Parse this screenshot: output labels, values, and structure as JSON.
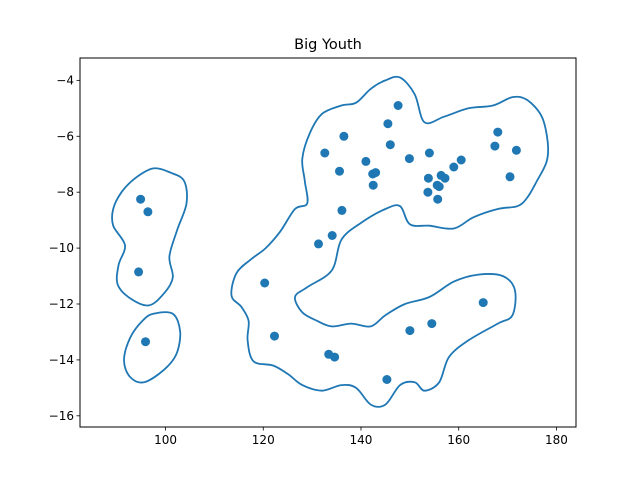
{
  "chart_data": {
    "type": "scatter",
    "title": "Big Youth",
    "xlabel": "",
    "ylabel": "",
    "xlim": [
      82.5,
      184
    ],
    "ylim": [
      -16.4,
      -3.2
    ],
    "xticks": [
      100,
      120,
      140,
      160,
      180
    ],
    "yticks": [
      -16,
      -14,
      -12,
      -10,
      -8,
      -6,
      -4
    ],
    "xtick_labels": [
      "100",
      "120",
      "140",
      "160",
      "180"
    ],
    "ytick_labels": [
      "−16",
      "−14",
      "−12",
      "−10",
      "−8",
      "−6",
      "−4"
    ],
    "grid": false,
    "point_color": "#1f77b4",
    "contour_color": "#1f77b4",
    "points": [
      {
        "x": 94.9,
        "y": -8.25
      },
      {
        "x": 96.4,
        "y": -8.7
      },
      {
        "x": 94.5,
        "y": -10.85
      },
      {
        "x": 95.9,
        "y": -13.35
      },
      {
        "x": 120.3,
        "y": -11.25
      },
      {
        "x": 122.3,
        "y": -13.15
      },
      {
        "x": 131.3,
        "y": -9.85
      },
      {
        "x": 133.4,
        "y": -13.8
      },
      {
        "x": 134.6,
        "y": -13.9
      },
      {
        "x": 134.1,
        "y": -9.55
      },
      {
        "x": 132.6,
        "y": -6.6
      },
      {
        "x": 135.6,
        "y": -7.25
      },
      {
        "x": 136.1,
        "y": -8.65
      },
      {
        "x": 136.5,
        "y": -6.0
      },
      {
        "x": 141.0,
        "y": -6.9
      },
      {
        "x": 142.4,
        "y": -7.35
      },
      {
        "x": 143.0,
        "y": -7.3
      },
      {
        "x": 142.5,
        "y": -7.75
      },
      {
        "x": 145.5,
        "y": -5.55
      },
      {
        "x": 146.0,
        "y": -6.3
      },
      {
        "x": 147.6,
        "y": -4.9
      },
      {
        "x": 149.9,
        "y": -6.8
      },
      {
        "x": 145.3,
        "y": -14.7
      },
      {
        "x": 150.0,
        "y": -12.95
      },
      {
        "x": 154.0,
        "y": -6.6
      },
      {
        "x": 153.8,
        "y": -7.5
      },
      {
        "x": 153.7,
        "y": -8.0
      },
      {
        "x": 155.6,
        "y": -7.75
      },
      {
        "x": 156.0,
        "y": -7.8
      },
      {
        "x": 156.4,
        "y": -7.4
      },
      {
        "x": 157.2,
        "y": -7.5
      },
      {
        "x": 155.7,
        "y": -8.25
      },
      {
        "x": 154.5,
        "y": -12.7
      },
      {
        "x": 159.0,
        "y": -7.1
      },
      {
        "x": 160.5,
        "y": -6.85
      },
      {
        "x": 165.0,
        "y": -11.95
      },
      {
        "x": 167.4,
        "y": -6.35
      },
      {
        "x": 168.0,
        "y": -5.85
      },
      {
        "x": 170.5,
        "y": -7.45
      },
      {
        "x": 171.8,
        "y": -6.5
      }
    ],
    "contours": [
      [
        [
          93.8,
          -7.5
        ],
        [
          97.5,
          -7.15
        ],
        [
          101,
          -7.3
        ],
        [
          103.8,
          -7.6
        ],
        [
          104.3,
          -8.4
        ],
        [
          102.4,
          -9.35
        ],
        [
          100.8,
          -10.3
        ],
        [
          101.5,
          -11.05
        ],
        [
          99.8,
          -11.6
        ],
        [
          96.6,
          -12.05
        ],
        [
          92.8,
          -11.8
        ],
        [
          90.2,
          -11.3
        ],
        [
          90.4,
          -10.6
        ],
        [
          91.7,
          -9.9
        ],
        [
          89.3,
          -9.2
        ],
        [
          89.3,
          -8.6
        ],
        [
          91,
          -8.0
        ],
        [
          93.8,
          -7.5
        ]
      ],
      [
        [
          97.5,
          -12.35
        ],
        [
          101.5,
          -12.35
        ],
        [
          103,
          -13.0
        ],
        [
          102.2,
          -13.8
        ],
        [
          99.7,
          -14.35
        ],
        [
          95.6,
          -14.8
        ],
        [
          92.7,
          -14.6
        ],
        [
          91.5,
          -14.0
        ],
        [
          92.8,
          -13.2
        ],
        [
          95.3,
          -12.6
        ],
        [
          97.5,
          -12.35
        ]
      ],
      [
        [
          145,
          -4.0
        ],
        [
          148,
          -3.9
        ],
        [
          151,
          -4.5
        ],
        [
          153,
          -5.5
        ],
        [
          157,
          -5.3
        ],
        [
          162,
          -5.0
        ],
        [
          167,
          -4.9
        ],
        [
          171,
          -4.6
        ],
        [
          174,
          -4.7
        ],
        [
          177,
          -5.3
        ],
        [
          178.2,
          -6.2
        ],
        [
          178,
          -6.9
        ],
        [
          176,
          -7.6
        ],
        [
          174,
          -8.2
        ],
        [
          172,
          -8.5
        ],
        [
          168,
          -8.6
        ],
        [
          163,
          -8.9
        ],
        [
          159,
          -9.3
        ],
        [
          154,
          -9.2
        ],
        [
          150,
          -9.15
        ],
        [
          148,
          -8.5
        ],
        [
          145,
          -8.6
        ],
        [
          140,
          -9.1
        ],
        [
          136,
          -9.7
        ],
        [
          134,
          -10.8
        ],
        [
          129,
          -11.4
        ],
        [
          126.5,
          -11.75
        ],
        [
          128,
          -12.3
        ],
        [
          131,
          -12.6
        ],
        [
          134,
          -12.8
        ],
        [
          138,
          -12.7
        ],
        [
          142,
          -12.8
        ],
        [
          145,
          -12.4
        ],
        [
          149,
          -12.0
        ],
        [
          154,
          -11.75
        ],
        [
          159,
          -11.2
        ],
        [
          164,
          -10.95
        ],
        [
          169,
          -11.0
        ],
        [
          171.5,
          -11.5
        ],
        [
          171,
          -12.4
        ],
        [
          168,
          -12.7
        ],
        [
          162,
          -13.3
        ],
        [
          158,
          -13.9
        ],
        [
          156,
          -14.8
        ],
        [
          153,
          -15.1
        ],
        [
          151,
          -14.8
        ],
        [
          148,
          -14.9
        ],
        [
          145,
          -15.6
        ],
        [
          142,
          -15.6
        ],
        [
          139,
          -15.0
        ],
        [
          136,
          -14.9
        ],
        [
          132,
          -15.1
        ],
        [
          128,
          -14.9
        ],
        [
          125,
          -14.5
        ],
        [
          122,
          -14.2
        ],
        [
          118,
          -14.05
        ],
        [
          116.8,
          -13.3
        ],
        [
          117,
          -12.6
        ],
        [
          115.5,
          -12.1
        ],
        [
          113.5,
          -11.7
        ],
        [
          114.5,
          -10.9
        ],
        [
          117.5,
          -10.4
        ],
        [
          120.5,
          -10.0
        ],
        [
          123.5,
          -9.4
        ],
        [
          126.5,
          -8.6
        ],
        [
          129,
          -8.4
        ],
        [
          128.5,
          -7.6
        ],
        [
          128,
          -6.8
        ],
        [
          129.5,
          -5.9
        ],
        [
          132,
          -5.2
        ],
        [
          136,
          -4.9
        ],
        [
          139,
          -4.8
        ],
        [
          142,
          -4.3
        ],
        [
          145,
          -4.0
        ]
      ]
    ]
  }
}
